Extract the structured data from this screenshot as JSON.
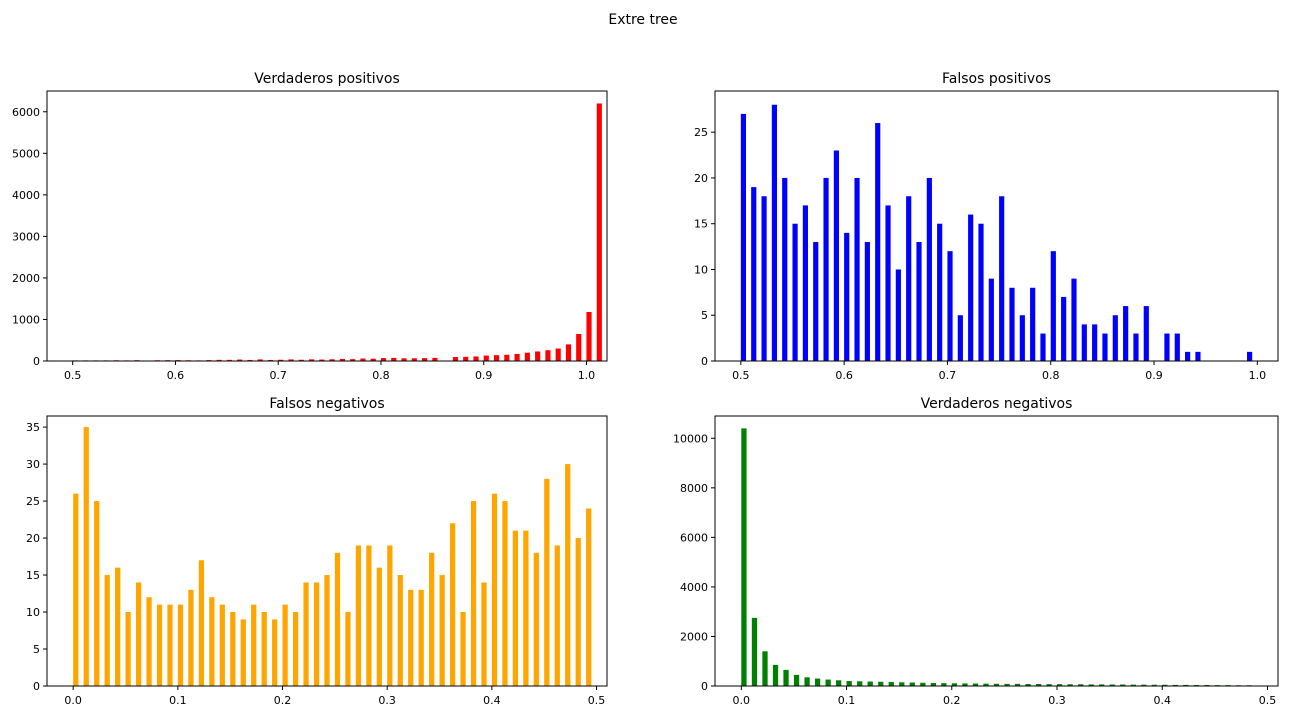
{
  "figure_title": "Extre tree",
  "chart_data": [
    {
      "type": "bar",
      "title": "Verdaderos positivos",
      "color": "#ff0000",
      "bin_start": 0.5,
      "bin_width": 0.01,
      "xlim": [
        0.475,
        1.02
      ],
      "ylim": [
        0,
        6500
      ],
      "xticks": [
        0.5,
        0.6,
        0.7,
        0.8,
        0.9,
        1.0
      ],
      "xtick_labels": [
        "0.5",
        "0.6",
        "0.7",
        "0.8",
        "0.9",
        "1.0"
      ],
      "yticks": [
        0,
        1000,
        2000,
        3000,
        4000,
        5000,
        6000
      ],
      "ytick_labels": [
        "0",
        "1000",
        "2000",
        "3000",
        "4000",
        "5000",
        "6000"
      ],
      "values": [
        15,
        15,
        15,
        15,
        18,
        15,
        20,
        0,
        18,
        20,
        22,
        18,
        15,
        22,
        28,
        28,
        35,
        25,
        38,
        25,
        30,
        38,
        30,
        40,
        35,
        42,
        50,
        45,
        60,
        55,
        70,
        75,
        65,
        65,
        70,
        75,
        0,
        95,
        100,
        110,
        130,
        140,
        150,
        170,
        200,
        230,
        260,
        300,
        400,
        650,
        1180,
        6200
      ]
    },
    {
      "type": "bar",
      "title": "Falsos positivos",
      "color": "#0000ff",
      "bin_start": 0.5,
      "bin_width": 0.01,
      "xlim": [
        0.475,
        1.02
      ],
      "ylim": [
        0,
        29.5
      ],
      "xticks": [
        0.5,
        0.6,
        0.7,
        0.8,
        0.9,
        1.0
      ],
      "xtick_labels": [
        "0.5",
        "0.6",
        "0.7",
        "0.8",
        "0.9",
        "1.0"
      ],
      "yticks": [
        0,
        5,
        10,
        15,
        20,
        25
      ],
      "ytick_labels": [
        "0",
        "5",
        "10",
        "15",
        "20",
        "25"
      ],
      "values": [
        27,
        19,
        18,
        28,
        20,
        15,
        17,
        13,
        20,
        23,
        14,
        20,
        13,
        26,
        17,
        10,
        18,
        13,
        20,
        15,
        12,
        5,
        16,
        15,
        9,
        18,
        8,
        5,
        8,
        3,
        12,
        7,
        9,
        4,
        4,
        3,
        5,
        6,
        3,
        6,
        0,
        3,
        3,
        1,
        1,
        0,
        0,
        0,
        0,
        1
      ]
    },
    {
      "type": "bar",
      "title": "Falsos negativos",
      "color": "#ffa500",
      "bin_start": 0.0,
      "bin_width": 0.01,
      "xlim": [
        -0.025,
        0.51
      ],
      "ylim": [
        0,
        36.5
      ],
      "xticks": [
        0.0,
        0.1,
        0.2,
        0.3,
        0.4,
        0.5
      ],
      "xtick_labels": [
        "0.0",
        "0.1",
        "0.2",
        "0.3",
        "0.4",
        "0.5"
      ],
      "yticks": [
        0,
        5,
        10,
        15,
        20,
        25,
        30,
        35
      ],
      "ytick_labels": [
        "0",
        "5",
        "10",
        "15",
        "20",
        "25",
        "30",
        "35"
      ],
      "values": [
        26,
        35,
        25,
        15,
        16,
        10,
        14,
        12,
        11,
        11,
        11,
        13,
        17,
        12,
        11,
        10,
        9,
        11,
        10,
        9,
        11,
        10,
        14,
        14,
        15,
        18,
        10,
        19,
        19,
        16,
        19,
        15,
        13,
        13,
        18,
        15,
        22,
        10,
        25,
        14,
        26,
        25,
        21,
        21,
        18,
        28,
        19,
        30,
        20,
        24
      ]
    },
    {
      "type": "bar",
      "title": "Verdaderos negativos",
      "color": "#008000",
      "bin_start": 0.0,
      "bin_width": 0.01,
      "xlim": [
        -0.025,
        0.51
      ],
      "ylim": [
        0,
        10900
      ],
      "xticks": [
        0.0,
        0.1,
        0.2,
        0.3,
        0.4,
        0.5
      ],
      "xtick_labels": [
        "0.0",
        "0.1",
        "0.2",
        "0.3",
        "0.4",
        "0.5"
      ],
      "yticks": [
        0,
        2000,
        4000,
        6000,
        8000,
        10000
      ],
      "ytick_labels": [
        "0",
        "2000",
        "4000",
        "6000",
        "8000",
        "10000"
      ],
      "values": [
        10400,
        2750,
        1400,
        850,
        650,
        450,
        350,
        300,
        260,
        230,
        200,
        190,
        180,
        170,
        160,
        150,
        140,
        130,
        120,
        115,
        110,
        105,
        100,
        95,
        90,
        85,
        85,
        80,
        80,
        75,
        75,
        70,
        70,
        65,
        65,
        60,
        60,
        55,
        55,
        50,
        50,
        45,
        45,
        40,
        40,
        35,
        35,
        30,
        30
      ]
    }
  ]
}
